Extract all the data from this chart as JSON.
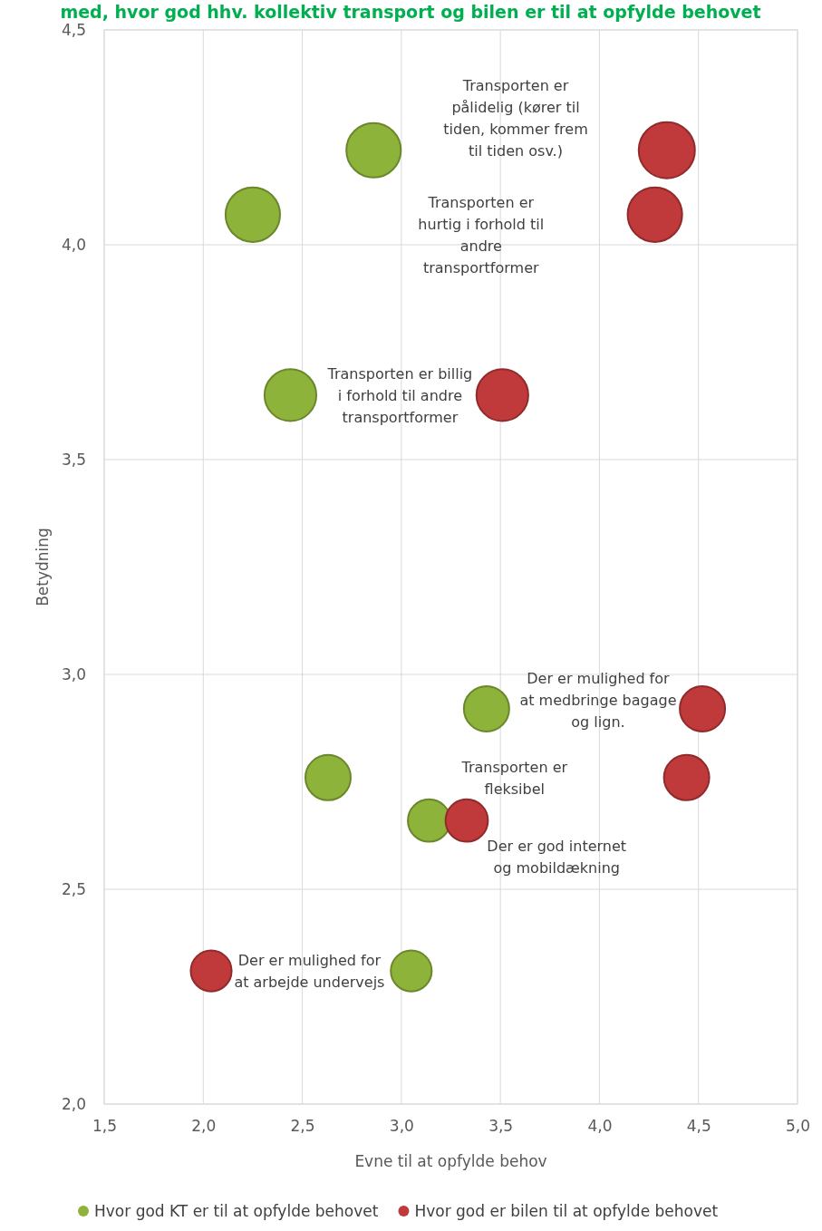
{
  "chart_data": {
    "type": "bubble",
    "title": "med, hvor god hhv. kollektiv transport og bilen er til at opfylde behovet",
    "xlabel": "Evne til at opfylde behov",
    "ylabel": "Betydning",
    "xlim": [
      1.5,
      5.0
    ],
    "xticks": [
      {
        "value": 1.5,
        "label": "1,5"
      },
      {
        "value": 2.0,
        "label": "2,0"
      },
      {
        "value": 2.5,
        "label": "2,5"
      },
      {
        "value": 3.0,
        "label": "3,0"
      },
      {
        "value": 3.5,
        "label": "3,5"
      },
      {
        "value": 4.0,
        "label": "4,0"
      },
      {
        "value": 4.5,
        "label": "4,5"
      },
      {
        "value": 5.0,
        "label": "5,0"
      }
    ],
    "ylim": [
      2.0,
      4.5
    ],
    "yticks": [
      {
        "value": 2.0,
        "label": "2,0"
      },
      {
        "value": 2.5,
        "label": "2,5"
      },
      {
        "value": 3.0,
        "label": "3,0"
      },
      {
        "value": 3.5,
        "label": "3,5"
      },
      {
        "value": 4.0,
        "label": "4,0"
      },
      {
        "value": 4.5,
        "label": "4,5"
      }
    ],
    "grid": true,
    "legend": "bottom",
    "marker": "circle",
    "series": [
      {
        "name": "Hvor god KT er til at opfylde behovet",
        "color": "#8db33a",
        "x": [
          2.86,
          2.25,
          2.44,
          3.43,
          2.63,
          3.14,
          3.05
        ],
        "values": [
          4.22,
          4.07,
          3.65,
          2.92,
          2.76,
          2.66,
          2.31
        ],
        "sizes": [
          0.94,
          0.94,
          0.85,
          0.65,
          0.65,
          0.57,
          0.53
        ]
      },
      {
        "name": "Hvor god er bilen til at opfylde behovet",
        "color": "#c0393b",
        "x": [
          4.34,
          4.28,
          3.51,
          4.52,
          4.44,
          3.33,
          2.04
        ],
        "values": [
          4.22,
          4.07,
          3.65,
          2.92,
          2.76,
          2.66,
          2.31
        ],
        "sizes": [
          1,
          0.94,
          0.85,
          0.65,
          0.65,
          0.57,
          0.53
        ]
      }
    ],
    "annotations": [
      "Transporten er\npålidelig (kører til\ntiden, kommer frem\ntil tiden osv.)",
      "Transporten er\nhurtig i forhold til\nandre\ntransportformer",
      "Transporten er billig\ni forhold til andre\ntransportformer",
      "Der er mulighed for\nat medbringe bagage\nog lign.",
      "Transporten er\nfleksibel",
      "Der er god internet\nog mobildækning",
      "Der er mulighed for\nat arbejde undervejs"
    ]
  }
}
